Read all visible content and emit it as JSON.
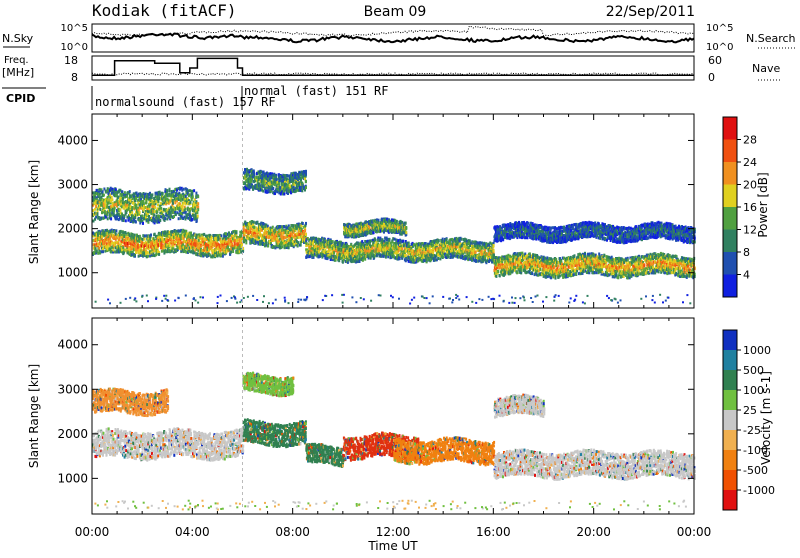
{
  "header": {
    "station": "Kodiak (fitACF)",
    "beam": "Beam 09",
    "date": "22/Sep/2011"
  },
  "summary": {
    "nsky_label": "N.Sky",
    "nsearch_label": "N.Search",
    "freq_label_1": "Freq.",
    "freq_label_2": "[MHz]",
    "nave_label": "Nave",
    "cpid_label": "CPID",
    "noise_ticks_left": [
      "10^5",
      "10^0"
    ],
    "noise_ticks_right": [
      "10^5",
      "10^0"
    ],
    "freq_ticks": [
      "18",
      "8"
    ],
    "nave_ticks": [
      "60",
      "0"
    ],
    "cpid_segments": [
      {
        "label": "normalsound (fast) 157 RF",
        "start_hour": 0
      },
      {
        "label": "normal (fast) 151 RF",
        "start_hour": 6
      }
    ],
    "freq_steps": [
      {
        "start": 0.0,
        "end": 0.9,
        "mhz": 10
      },
      {
        "start": 0.9,
        "end": 2.5,
        "mhz": 16
      },
      {
        "start": 2.5,
        "end": 3.5,
        "mhz": 15
      },
      {
        "start": 3.5,
        "end": 3.9,
        "mhz": 11
      },
      {
        "start": 3.9,
        "end": 4.2,
        "mhz": 13
      },
      {
        "start": 4.2,
        "end": 5.8,
        "mhz": 17
      },
      {
        "start": 5.8,
        "end": 6.0,
        "mhz": 13
      },
      {
        "start": 6.0,
        "end": 24.0,
        "mhz": 10
      }
    ]
  },
  "chart_data": [
    {
      "type": "heatmap",
      "panel": "power",
      "ylabel": "Slant Range [km]",
      "yticks": [
        1000,
        2000,
        3000,
        4000
      ],
      "ylim": [
        200,
        4600
      ],
      "xlim": [
        0,
        24
      ],
      "colorbar_label": "Power [dB]",
      "colorbar_ticks": [
        "4",
        "8",
        "12",
        "16",
        "20",
        "24",
        "28"
      ],
      "colors": [
        "#1020e0",
        "#2050b0",
        "#308060",
        "#50a040",
        "#e0d020",
        "#f09020",
        "#f05010",
        "#e01010"
      ],
      "features": [
        {
          "t0": 0.0,
          "t1": 6.0,
          "center": 1650,
          "width": 500,
          "level": 0.75
        },
        {
          "t0": 0.0,
          "t1": 4.2,
          "center": 2500,
          "width": 700,
          "level": 0.55
        },
        {
          "t0": 6.0,
          "t1": 8.5,
          "center": 1850,
          "width": 500,
          "level": 0.7
        },
        {
          "t0": 6.0,
          "t1": 8.5,
          "center": 3050,
          "width": 450,
          "level": 0.45
        },
        {
          "t0": 8.5,
          "t1": 16.0,
          "center": 1500,
          "width": 450,
          "level": 0.6
        },
        {
          "t0": 10.0,
          "t1": 12.5,
          "center": 2000,
          "width": 300,
          "level": 0.55
        },
        {
          "t0": 16.0,
          "t1": 24.0,
          "center": 1150,
          "width": 450,
          "level": 0.7
        },
        {
          "t0": 16.0,
          "t1": 24.0,
          "center": 1900,
          "width": 350,
          "level": 0.25
        }
      ]
    },
    {
      "type": "heatmap",
      "panel": "velocity",
      "ylabel": "Slant Range [km]",
      "yticks": [
        1000,
        2000,
        3000,
        4000
      ],
      "ylim": [
        200,
        4600
      ],
      "xlim": [
        0,
        24
      ],
      "colorbar_label": "Velocity [m s-1]",
      "colorbar_ticks": [
        "1000",
        "500",
        "100",
        "25",
        "-25",
        "-100",
        "-500",
        "-1000"
      ],
      "colors": [
        "#1030c0",
        "#2080a0",
        "#308050",
        "#70c040",
        "#c8c8c8",
        "#f0b050",
        "#f08010",
        "#f05000",
        "#e01010"
      ],
      "features": [
        {
          "t0": 0.0,
          "t1": 6.0,
          "center": 1750,
          "width": 600,
          "color": "#c8c8c8"
        },
        {
          "t0": 0.0,
          "t1": 3.0,
          "center": 2700,
          "width": 500,
          "color": "#f09030"
        },
        {
          "t0": 6.0,
          "t1": 8.5,
          "center": 2000,
          "width": 500,
          "color": "#308050"
        },
        {
          "t0": 6.0,
          "t1": 8.0,
          "center": 3100,
          "width": 400,
          "color": "#70c040"
        },
        {
          "t0": 8.5,
          "t1": 10.0,
          "center": 1500,
          "width": 400,
          "color": "#308050"
        },
        {
          "t0": 10.0,
          "t1": 13.0,
          "center": 1700,
          "width": 500,
          "color": "#e03010"
        },
        {
          "t0": 12.0,
          "t1": 16.0,
          "center": 1600,
          "width": 500,
          "color": "#f08010"
        },
        {
          "t0": 16.0,
          "t1": 24.0,
          "center": 1300,
          "width": 550,
          "color": "#c8c8c8"
        },
        {
          "t0": 16.0,
          "t1": 18.0,
          "center": 2600,
          "width": 400,
          "color": "#c8c8c8"
        }
      ]
    }
  ],
  "xaxis": {
    "label": "Time UT",
    "ticks": [
      "00:00",
      "04:00",
      "08:00",
      "12:00",
      "16:00",
      "20:00",
      "00:00"
    ]
  }
}
